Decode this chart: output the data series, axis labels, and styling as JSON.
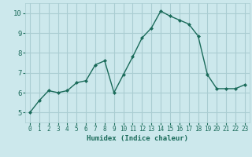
{
  "x": [
    0,
    1,
    2,
    3,
    4,
    5,
    6,
    7,
    8,
    9,
    10,
    11,
    12,
    13,
    14,
    15,
    16,
    17,
    18,
    19,
    20,
    21,
    22,
    23
  ],
  "y": [
    5.0,
    5.6,
    6.1,
    6.0,
    6.1,
    6.5,
    6.6,
    7.4,
    7.6,
    6.0,
    6.9,
    7.8,
    8.75,
    9.25,
    10.1,
    9.85,
    9.65,
    9.45,
    8.85,
    6.9,
    6.2,
    6.2,
    6.2,
    6.4
  ],
  "xlabel": "Humidex (Indice chaleur)",
  "ylim": [
    4.5,
    10.5
  ],
  "xlim": [
    -0.5,
    23.5
  ],
  "yticks": [
    5,
    6,
    7,
    8,
    9,
    10
  ],
  "xticks": [
    0,
    1,
    2,
    3,
    4,
    5,
    6,
    7,
    8,
    9,
    10,
    11,
    12,
    13,
    14,
    15,
    16,
    17,
    18,
    19,
    20,
    21,
    22,
    23
  ],
  "line_color": "#1a6b5a",
  "marker": "D",
  "marker_size": 2.0,
  "bg_color": "#cce8ec",
  "grid_color": "#aacdd2",
  "tick_color": "#1a6b5a",
  "label_color": "#1a6b5a",
  "xlabel_fontsize": 6.5,
  "ytick_fontsize": 6.5,
  "xtick_fontsize": 5.5
}
